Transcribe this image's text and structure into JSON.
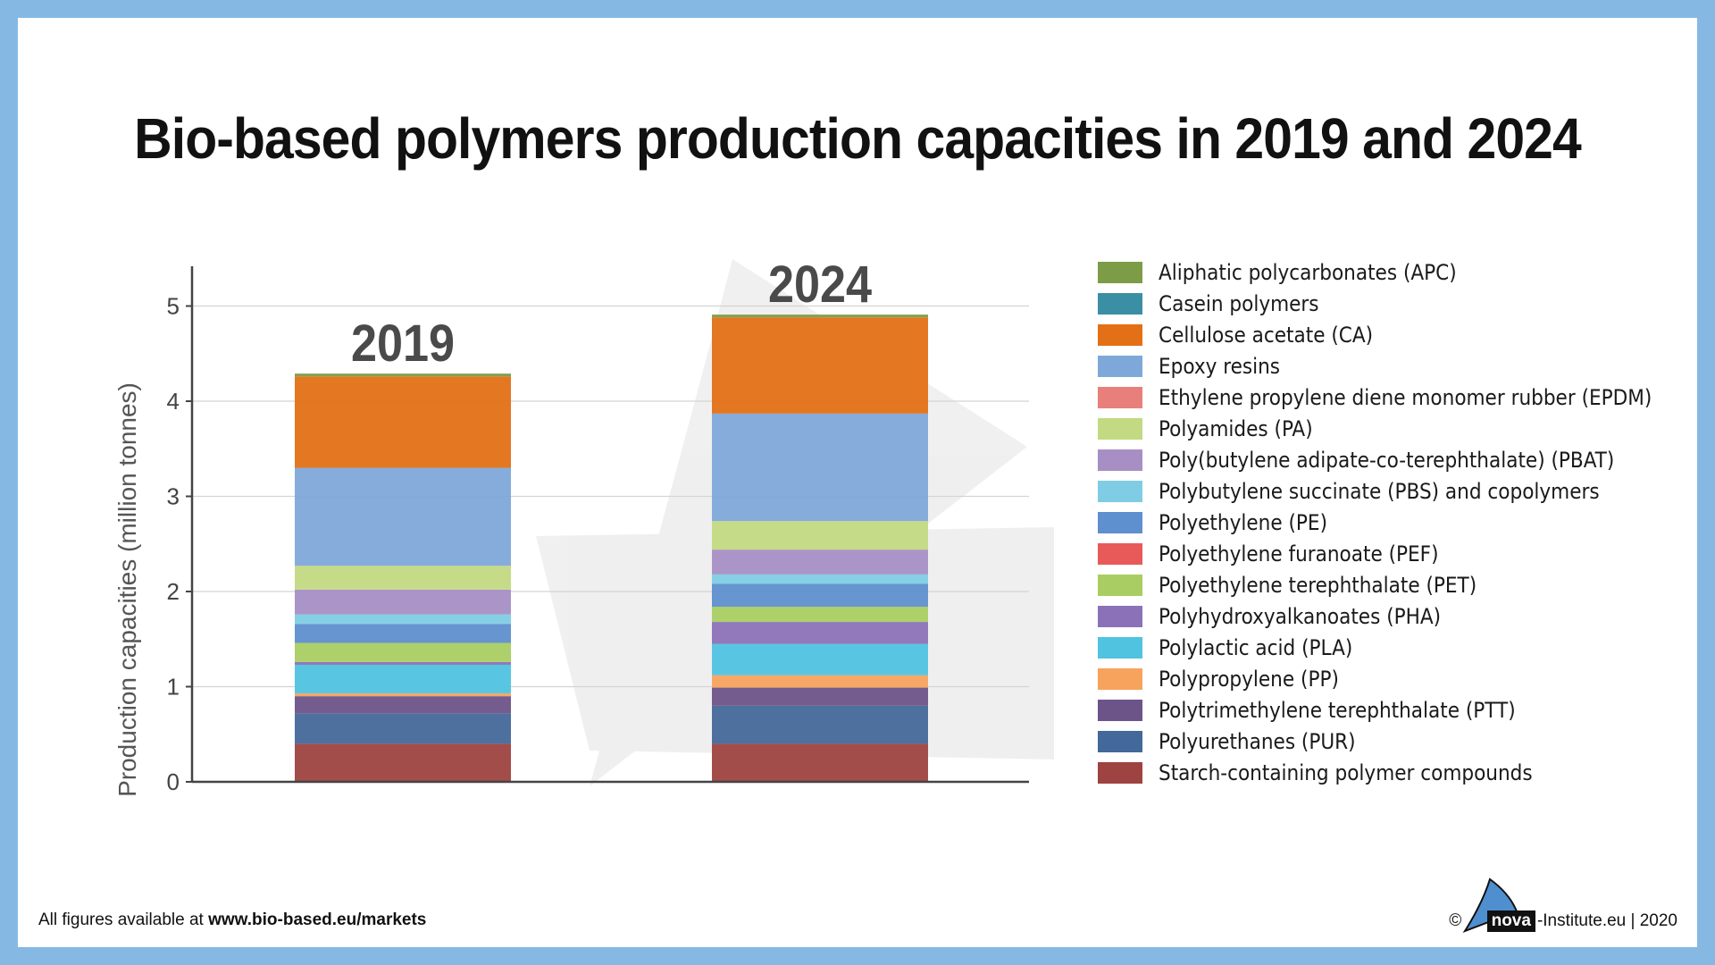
{
  "title": "Bio-based polymers production capacities in 2019 and 2024",
  "footer": {
    "left_prefix": "All figures available at ",
    "left_link": "www.bio-based.eu/markets",
    "right_copyright": "©",
    "right_brand": "nova",
    "right_suffix": "-Institute.eu | 2020"
  },
  "chart_data": {
    "type": "bar",
    "stacked": true,
    "ylabel": "Production capacities (million tonnes)",
    "ylim": [
      0,
      5.4
    ],
    "yticks": [
      0,
      1,
      2,
      3,
      4,
      5
    ],
    "grid": true,
    "legend_position": "right",
    "categories": [
      "2019",
      "2024"
    ],
    "series": [
      {
        "name": "Starch-containing polymer compounds",
        "color": "#9e4341",
        "values": [
          0.4,
          0.4
        ]
      },
      {
        "name": "Polyurethanes (PUR)",
        "color": "#43689a",
        "values": [
          0.32,
          0.4
        ]
      },
      {
        "name": "Polytrimethylene terephthalate (PTT)",
        "color": "#6d5488",
        "values": [
          0.18,
          0.19
        ]
      },
      {
        "name": "Polypropylene (PP)",
        "color": "#f7a35e",
        "values": [
          0.03,
          0.13
        ]
      },
      {
        "name": "Polylactic acid (PLA)",
        "color": "#4fc3e0",
        "values": [
          0.3,
          0.33
        ]
      },
      {
        "name": "Polyhydroxyalkanoates (PHA)",
        "color": "#8b72b8",
        "values": [
          0.03,
          0.23
        ]
      },
      {
        "name": "Polyethylene terephthalate (PET)",
        "color": "#a9cd62",
        "values": [
          0.2,
          0.16
        ]
      },
      {
        "name": "Polyethylene furanoate (PEF)",
        "color": "#e85a5a",
        "values": [
          0.0,
          0.0
        ]
      },
      {
        "name": "Polyethylene (PE)",
        "color": "#5e8fce",
        "values": [
          0.2,
          0.24
        ]
      },
      {
        "name": "Polybutylene succinate (PBS) and copolymers",
        "color": "#7fcde4",
        "values": [
          0.1,
          0.1
        ]
      },
      {
        "name": "Poly(butylene adipate-co-terephthalate) (PBAT)",
        "color": "#a78fc5",
        "values": [
          0.26,
          0.26
        ]
      },
      {
        "name": "Polyamides (PA)",
        "color": "#c3d982",
        "values": [
          0.25,
          0.3
        ]
      },
      {
        "name": "Ethylene propylene diene monomer rubber (EPDM)",
        "color": "#e87f7a",
        "values": [
          0.0,
          0.0
        ]
      },
      {
        "name": "Epoxy resins",
        "color": "#7fa8da",
        "values": [
          1.03,
          1.13
        ]
      },
      {
        "name": "Cellulose acetate (CA)",
        "color": "#e37016",
        "values": [
          0.96,
          1.01
        ]
      },
      {
        "name": "Casein polymers",
        "color": "#3a8fa5",
        "values": [
          0.0,
          0.0
        ]
      },
      {
        "name": "Aliphatic polycarbonates (APC)",
        "color": "#7d9c48",
        "values": [
          0.03,
          0.03
        ]
      }
    ]
  }
}
